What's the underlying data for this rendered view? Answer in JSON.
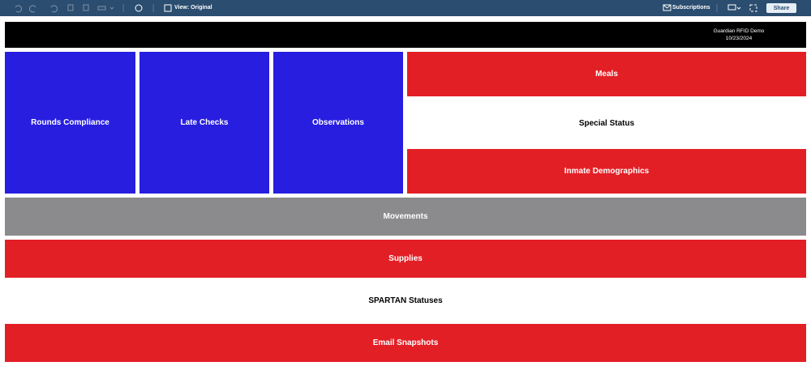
{
  "toolbar": {
    "view_label": "View: Original",
    "subscriptions": "Subscriptions",
    "share": "Share"
  },
  "header": {
    "title": "Guardian RFID Demo",
    "date": "10/23/2024"
  },
  "tiles": [
    {
      "label": "Rounds Compliance"
    },
    {
      "label": "Late Checks"
    },
    {
      "label": "Observations"
    },
    {
      "label": "Meals"
    },
    {
      "label": "Special Status"
    },
    {
      "label": "Inmate Demographics"
    },
    {
      "label": "Movements"
    },
    {
      "label": "Supplies"
    },
    {
      "label": "SPARTAN Statuses"
    },
    {
      "label": "Email Snapshots"
    }
  ]
}
